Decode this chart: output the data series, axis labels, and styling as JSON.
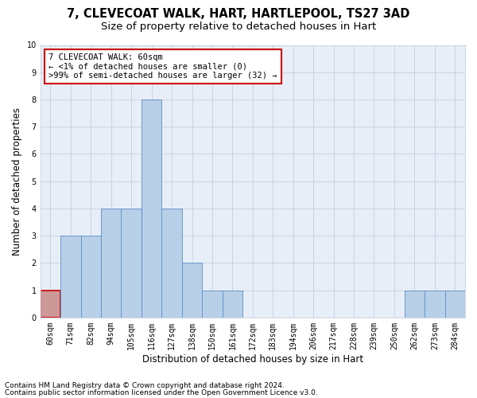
{
  "title_line1": "7, CLEVECOAT WALK, HART, HARTLEPOOL, TS27 3AD",
  "title_line2": "Size of property relative to detached houses in Hart",
  "xlabel": "Distribution of detached houses by size in Hart",
  "ylabel": "Number of detached properties",
  "categories": [
    "60sqm",
    "71sqm",
    "82sqm",
    "94sqm",
    "105sqm",
    "116sqm",
    "127sqm",
    "138sqm",
    "150sqm",
    "161sqm",
    "172sqm",
    "183sqm",
    "194sqm",
    "206sqm",
    "217sqm",
    "228sqm",
    "239sqm",
    "250sqm",
    "262sqm",
    "273sqm",
    "284sqm"
  ],
  "values": [
    1,
    3,
    3,
    4,
    4,
    8,
    4,
    2,
    1,
    1,
    0,
    0,
    0,
    0,
    0,
    0,
    0,
    0,
    1,
    1,
    1
  ],
  "bar_color": "#b8cfe8",
  "bar_edge_color": "#5b8fc9",
  "highlight_index": 0,
  "highlight_color": "#cc0000",
  "ylim": [
    0,
    10
  ],
  "yticks": [
    0,
    1,
    2,
    3,
    4,
    5,
    6,
    7,
    8,
    9,
    10
  ],
  "annotation_box_text": "7 CLEVECOAT WALK: 60sqm\n← <1% of detached houses are smaller (0)\n>99% of semi-detached houses are larger (32) →",
  "annotation_box_color": "#cc0000",
  "footer_line1": "Contains HM Land Registry data © Crown copyright and database right 2024.",
  "footer_line2": "Contains public sector information licensed under the Open Government Licence v3.0.",
  "background_color": "#e8eef8",
  "grid_color": "#c0c8d8",
  "title_fontsize": 10.5,
  "subtitle_fontsize": 9.5,
  "xlabel_fontsize": 8.5,
  "ylabel_fontsize": 8.5,
  "tick_fontsize": 7,
  "footer_fontsize": 6.5,
  "annotation_fontsize": 7.5
}
